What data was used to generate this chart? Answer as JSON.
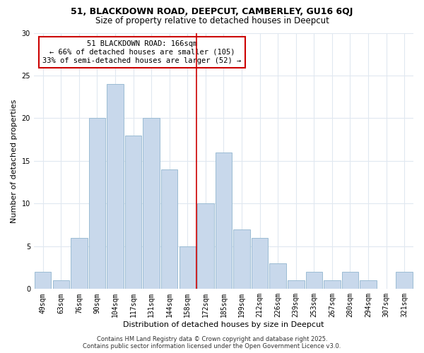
{
  "title": "51, BLACKDOWN ROAD, DEEPCUT, CAMBERLEY, GU16 6QJ",
  "subtitle": "Size of property relative to detached houses in Deepcut",
  "xlabel": "Distribution of detached houses by size in Deepcut",
  "ylabel": "Number of detached properties",
  "bar_color": "#c8d8eb",
  "bar_edge_color": "#9bbcd4",
  "categories": [
    "49sqm",
    "63sqm",
    "76sqm",
    "90sqm",
    "104sqm",
    "117sqm",
    "131sqm",
    "144sqm",
    "158sqm",
    "172sqm",
    "185sqm",
    "199sqm",
    "212sqm",
    "226sqm",
    "239sqm",
    "253sqm",
    "267sqm",
    "280sqm",
    "294sqm",
    "307sqm",
    "321sqm"
  ],
  "values": [
    2,
    1,
    6,
    20,
    24,
    18,
    20,
    14,
    5,
    10,
    16,
    7,
    6,
    3,
    1,
    2,
    1,
    2,
    1,
    0,
    2
  ],
  "ylim": [
    0,
    30
  ],
  "yticks": [
    0,
    5,
    10,
    15,
    20,
    25,
    30
  ],
  "vline_x": 8.5,
  "vline_color": "#cc0000",
  "annotation_title": "51 BLACKDOWN ROAD: 166sqm",
  "annotation_line1": "← 66% of detached houses are smaller (105)",
  "annotation_line2": "33% of semi-detached houses are larger (52) →",
  "annotation_box_color": "#cc0000",
  "footer1": "Contains HM Land Registry data © Crown copyright and database right 2025.",
  "footer2": "Contains public sector information licensed under the Open Government Licence v3.0.",
  "background_color": "#ffffff",
  "grid_color": "#e0e8f0",
  "title_fontsize": 9,
  "subtitle_fontsize": 8.5,
  "axis_label_fontsize": 8,
  "tick_fontsize": 7,
  "footer_fontsize": 6,
  "annotation_fontsize": 7.5
}
